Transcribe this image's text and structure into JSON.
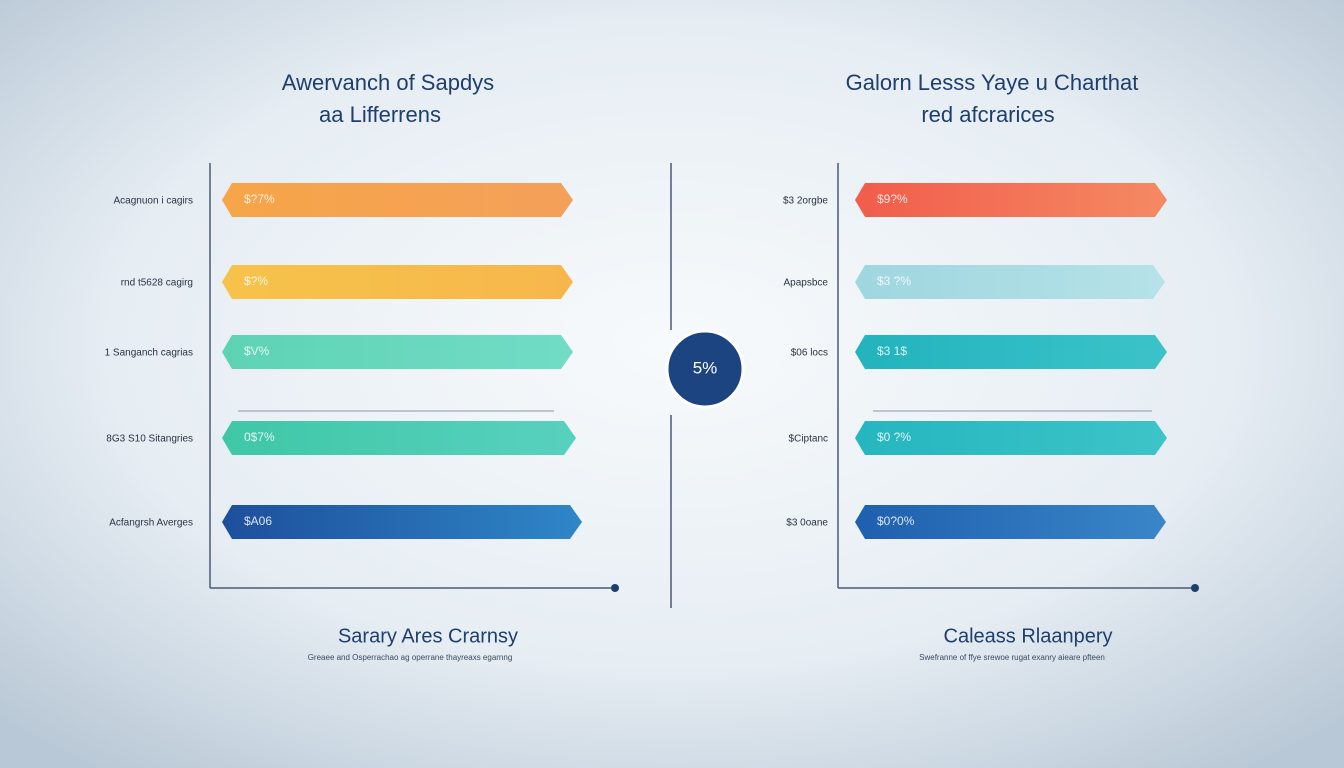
{
  "left": {
    "title": [
      "Awervanch of Sapdys",
      "aa Lifferrens"
    ],
    "rows": [
      {
        "label": "Acagnuon i cagirs",
        "bar": "$?7%"
      },
      {
        "label": "rnd t5628 cagirg",
        "bar": "$?%"
      },
      {
        "label": "1 Sanganch cagrias",
        "bar": "$V%"
      },
      {
        "label": "8G3 S10 Sitangries",
        "bar": "0$7%"
      },
      {
        "label": "Acfangrsh Averges",
        "bar": "$A06"
      }
    ],
    "footer": {
      "title": "Sarary Ares Crarnsy",
      "subtitle": "Greaee and Osperrachao ag operrane thayreaxs egarnng"
    }
  },
  "center": {
    "badge": "5%"
  },
  "right": {
    "title": [
      "Galorn Lesss Yaye u Charthat",
      "red afcrarices"
    ],
    "rows": [
      {
        "label": "$3 2orgbe",
        "bar": "$9?%"
      },
      {
        "label": "Apapsbce",
        "bar": "$3 ?%"
      },
      {
        "label": "$06 locs",
        "bar": "$3 1$"
      },
      {
        "label": "$Ciptanc",
        "bar": "$0 ?%"
      },
      {
        "label": "$3 0oane",
        "bar": "$0?0%"
      }
    ],
    "footer": {
      "title": "Caleass Rlaanpery",
      "subtitle": "Swefranne of ffye srewoe rugat exanry aieare pfteen"
    }
  }
}
